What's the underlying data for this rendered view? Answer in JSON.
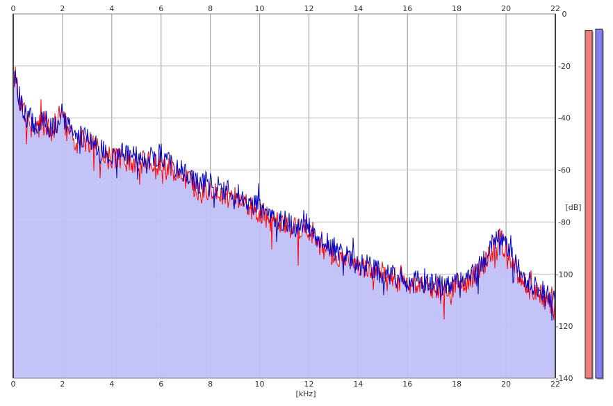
{
  "chart_data": {
    "type": "area",
    "title": "",
    "xlabel": "[kHz]",
    "ylabel": "[dB]",
    "xlim": [
      0,
      22
    ],
    "ylim": [
      -140,
      0
    ],
    "x_ticks": [
      0,
      2,
      4,
      6,
      8,
      10,
      12,
      14,
      16,
      18,
      20,
      22
    ],
    "y_ticks": [
      0,
      -20,
      -40,
      -60,
      -80,
      -100,
      -120,
      -140
    ],
    "grid": true,
    "colors": {
      "fill": "#c0c0f8",
      "left_channel": "#ff0000",
      "right_channel": "#0000cc",
      "meter_left": "#f08080",
      "meter_right": "#8080f0"
    },
    "series": [
      {
        "channel": "left",
        "x": [
          0,
          0.1,
          0.25,
          0.5,
          0.75,
          1,
          1.25,
          1.5,
          1.75,
          2,
          2.25,
          2.5,
          3,
          3.5,
          4,
          4.5,
          5,
          5.5,
          6,
          6.5,
          7,
          7.5,
          8,
          8.5,
          9,
          9.5,
          10,
          10.5,
          11,
          11.5,
          11.8,
          12,
          12.5,
          13,
          13.5,
          14,
          14.5,
          15,
          15.5,
          16,
          16.5,
          17,
          17.5,
          18,
          18.5,
          19,
          19.25,
          19.5,
          19.75,
          20,
          20.5,
          21,
          21.5,
          22
        ],
        "y": [
          -22,
          -25,
          -33,
          -40,
          -42,
          -44,
          -41,
          -45,
          -43,
          -40,
          -45,
          -48,
          -49,
          -53,
          -55,
          -56,
          -57,
          -57,
          -56,
          -60,
          -63,
          -67,
          -67,
          -70,
          -71,
          -74,
          -76,
          -80,
          -81,
          -83,
          -82,
          -85,
          -89,
          -93,
          -94,
          -97,
          -98,
          -101,
          -101,
          -104,
          -104,
          -105,
          -105,
          -105,
          -103,
          -97,
          -94,
          -90,
          -87,
          -89,
          -100,
          -105,
          -108,
          -113
        ]
      },
      {
        "channel": "right",
        "x": [
          0,
          0.1,
          0.25,
          0.5,
          0.75,
          1,
          1.25,
          1.5,
          1.75,
          2,
          2.25,
          2.5,
          3,
          3.5,
          4,
          4.5,
          5,
          5.5,
          6,
          6.5,
          7,
          7.5,
          8,
          8.5,
          9,
          9.5,
          10,
          10.5,
          11,
          11.5,
          11.8,
          12,
          12.5,
          13,
          13.5,
          14,
          14.5,
          15,
          15.5,
          16,
          16.5,
          17,
          17.5,
          18,
          18.5,
          19,
          19.25,
          19.5,
          19.75,
          20,
          20.5,
          21,
          21.5,
          22
        ],
        "y": [
          -21,
          -24,
          -32,
          -39,
          -41,
          -43,
          -40,
          -44,
          -42,
          -38,
          -44,
          -47,
          -48,
          -52,
          -54,
          -54,
          -55,
          -55,
          -54,
          -58,
          -62,
          -65,
          -65,
          -68,
          -69,
          -72,
          -74,
          -78,
          -79,
          -82,
          -79,
          -83,
          -87,
          -91,
          -93,
          -96,
          -97,
          -100,
          -100,
          -103,
          -103,
          -104,
          -104,
          -104,
          -101,
          -96,
          -92,
          -88,
          -85,
          -88,
          -98,
          -104,
          -107,
          -111
        ]
      }
    ],
    "level_meters": [
      {
        "channel": "left",
        "level": 0.955
      },
      {
        "channel": "right",
        "level": 0.958
      }
    ]
  }
}
